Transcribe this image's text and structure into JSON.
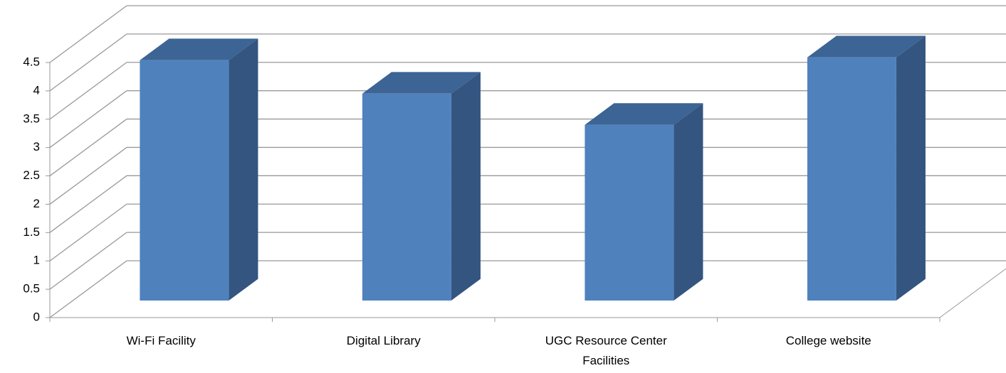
{
  "chart_data": {
    "type": "bar3d",
    "categories": [
      "Wi-Fi Facility",
      "Digital Library",
      "UGC Resource Center Facilities",
      "College website"
    ],
    "values": [
      4.24,
      3.65,
      3.1,
      4.29
    ],
    "colors": {
      "front": "#4f81bd",
      "top": "#3c6494",
      "side": "#335580"
    },
    "ylim": [
      0,
      4.5
    ],
    "yticks": [
      0,
      0.5,
      1,
      1.5,
      2,
      2.5,
      3,
      3.5,
      4,
      4.5
    ],
    "grid": true
  }
}
